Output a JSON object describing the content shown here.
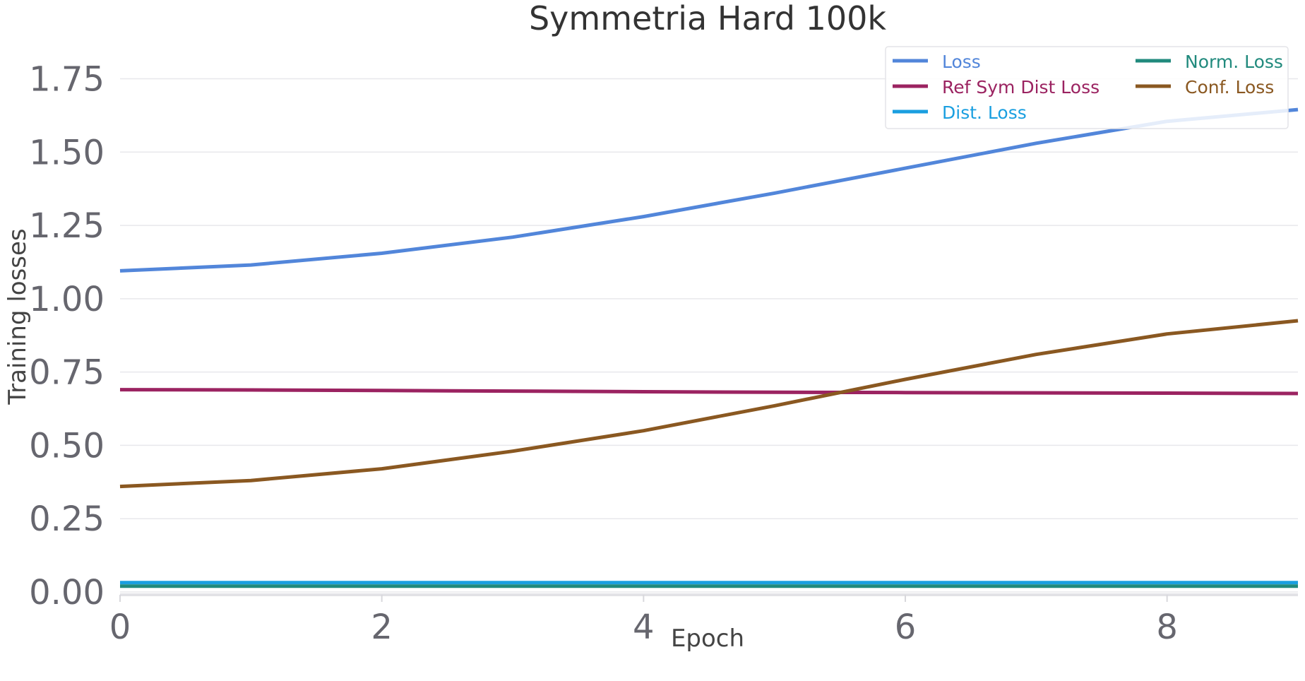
{
  "chart_data": {
    "type": "line",
    "title": "Symmetria Hard 100k",
    "xlabel": "Epoch",
    "ylabel": "Training losses",
    "xlim": [
      0,
      9
    ],
    "ylim": [
      0,
      1.85
    ],
    "xticks": [
      0,
      2,
      4,
      6,
      8
    ],
    "xtick_labels": [
      "0",
      "2",
      "4",
      "6",
      "8"
    ],
    "yticks": [
      0,
      0.25,
      0.5,
      0.75,
      1.0,
      1.25,
      1.5,
      1.75
    ],
    "ytick_labels": [
      "0.00",
      "0.25",
      "0.50",
      "0.75",
      "1.00",
      "1.25",
      "1.50",
      "1.75"
    ],
    "grid": true,
    "legend_position": "top-right",
    "x": [
      0,
      1,
      2,
      3,
      4,
      5,
      6,
      7,
      8,
      9
    ],
    "series": [
      {
        "name": "Loss",
        "color": "#5286da",
        "values": [
          1.095,
          1.115,
          1.155,
          1.21,
          1.28,
          1.36,
          1.445,
          1.53,
          1.605,
          1.645
        ]
      },
      {
        "name": "Ref Sym Dist Loss",
        "color": "#9b2361",
        "values": [
          0.69,
          0.689,
          0.687,
          0.685,
          0.683,
          0.681,
          0.68,
          0.679,
          0.678,
          0.677
        ]
      },
      {
        "name": "Dist. Loss",
        "color": "#1a9fe0",
        "values": [
          0.032,
          0.032,
          0.032,
          0.032,
          0.032,
          0.032,
          0.032,
          0.032,
          0.032,
          0.032
        ]
      },
      {
        "name": "Norm. Loss",
        "color": "#218a7d",
        "values": [
          0.02,
          0.02,
          0.02,
          0.02,
          0.02,
          0.02,
          0.02,
          0.02,
          0.02,
          0.02
        ]
      },
      {
        "name": "Conf. Loss",
        "color": "#8a5821",
        "values": [
          0.36,
          0.38,
          0.42,
          0.48,
          0.55,
          0.635,
          0.725,
          0.81,
          0.88,
          0.925
        ]
      }
    ],
    "legend_order": [
      0,
      3,
      1,
      4,
      2
    ]
  }
}
